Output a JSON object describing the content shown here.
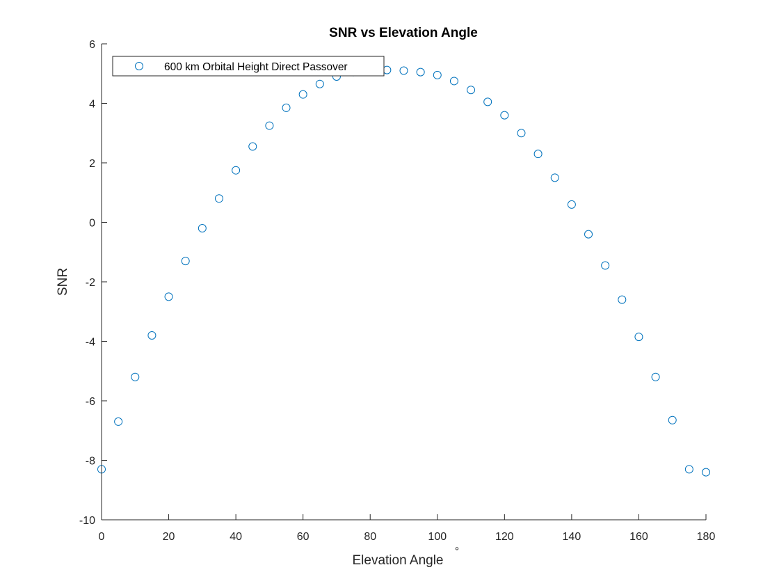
{
  "chart_data": {
    "type": "scatter",
    "title": "SNR vs Elevation Angle",
    "xlabel": "Elevation Angle",
    "xlabel_suffix": "°",
    "ylabel": "SNR",
    "xlim": [
      0,
      180
    ],
    "ylim": [
      -10,
      6
    ],
    "xticks": [
      0,
      20,
      40,
      60,
      80,
      100,
      120,
      140,
      160,
      180
    ],
    "yticks": [
      -10,
      -8,
      -6,
      -4,
      -2,
      0,
      2,
      4,
      6
    ],
    "grid": false,
    "legend": {
      "placement": "top-left",
      "entries": [
        "600 km Orbital Height Direct Passover"
      ]
    },
    "series": [
      {
        "name": "600 km Orbital Height Direct Passover",
        "color": "#0072BD",
        "marker": "circle",
        "x": [
          0,
          5,
          10,
          15,
          20,
          25,
          30,
          35,
          40,
          45,
          50,
          55,
          60,
          65,
          70,
          75,
          80,
          85,
          90,
          95,
          100,
          105,
          110,
          115,
          120,
          125,
          130,
          135,
          140,
          145,
          150,
          155,
          160,
          165,
          170,
          175,
          180
        ],
        "y": [
          -8.3,
          -6.7,
          -5.2,
          -3.8,
          -2.5,
          -1.3,
          -0.2,
          0.8,
          1.75,
          2.55,
          3.25,
          3.85,
          4.3,
          4.65,
          4.9,
          5.05,
          5.1,
          5.12,
          5.1,
          5.05,
          4.95,
          4.75,
          4.45,
          4.05,
          3.6,
          3.0,
          2.3,
          1.5,
          0.6,
          -0.4,
          -1.45,
          -2.6,
          -3.85,
          -5.2,
          -6.65,
          -8.3,
          -8.4
        ]
      }
    ]
  }
}
